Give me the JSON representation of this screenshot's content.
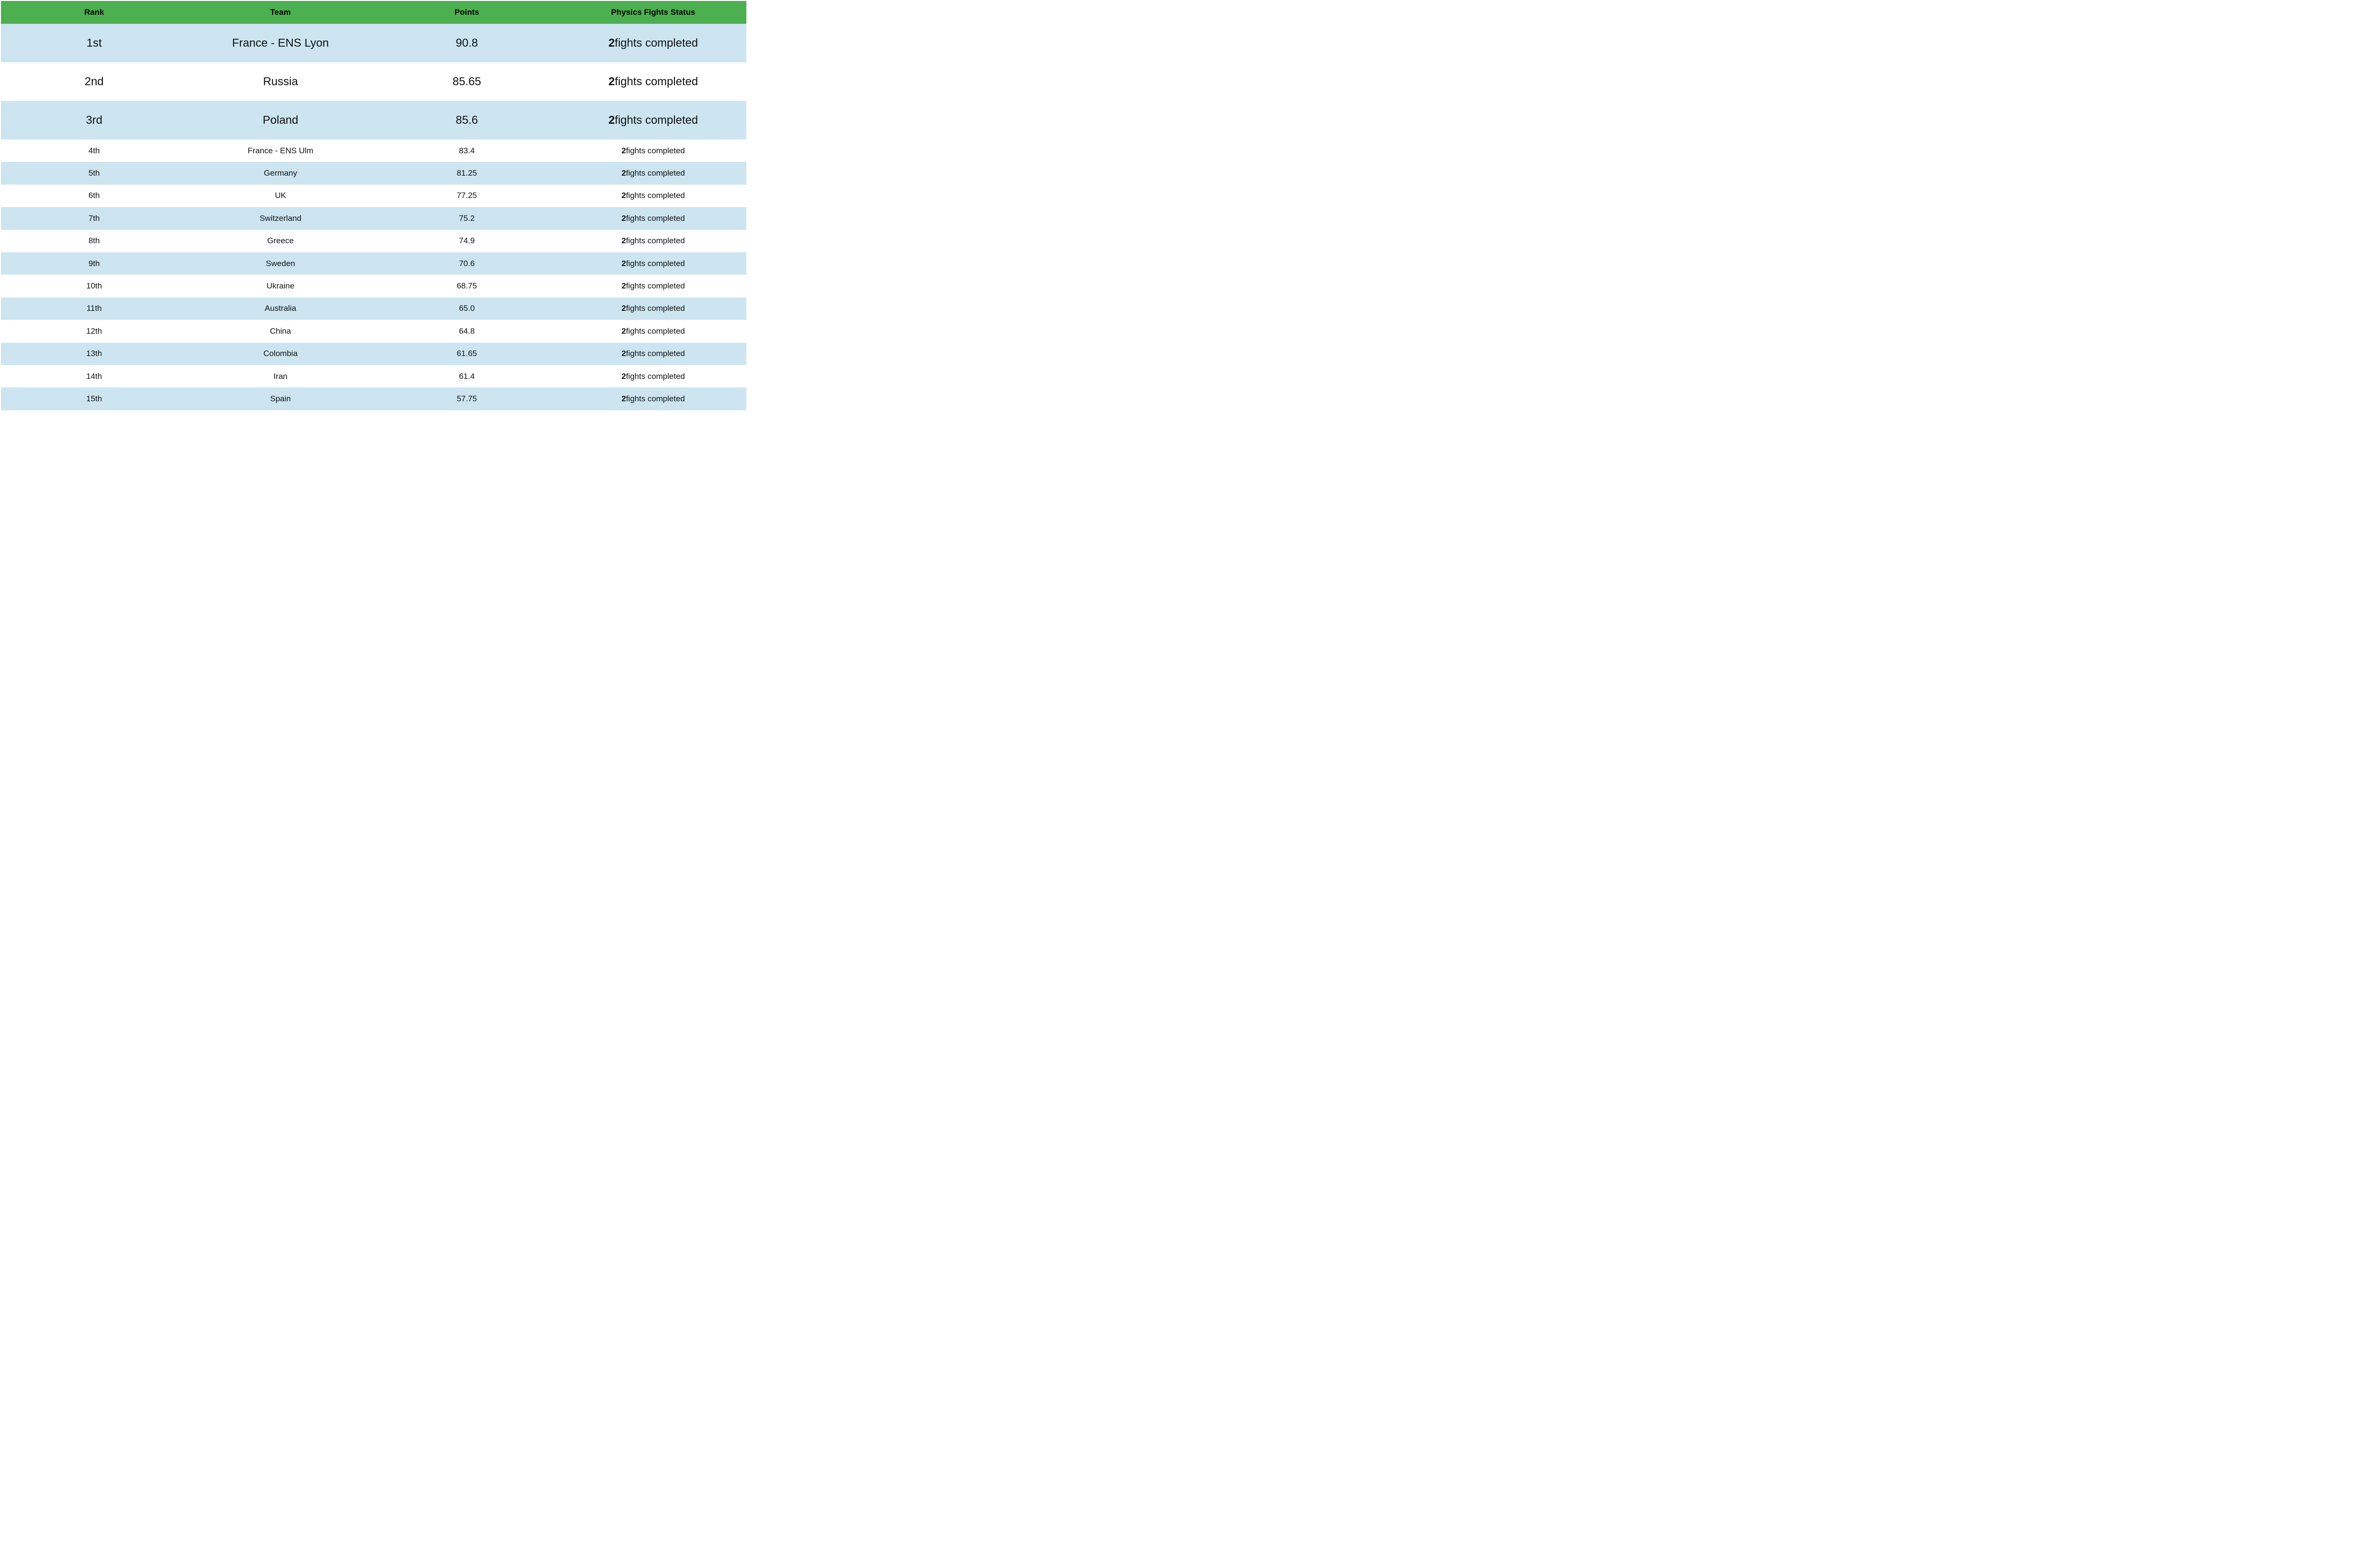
{
  "colors": {
    "header_bg": "#4caf50",
    "header_text": "#000000",
    "row_blue_bg": "#cce5f1",
    "row_white_bg": "#ffffff",
    "body_text": "#111111"
  },
  "table": {
    "columns": [
      {
        "label": "Rank"
      },
      {
        "label": "Team"
      },
      {
        "label": "Points"
      },
      {
        "label": "Physics Fights Status"
      }
    ],
    "status_suffix": " fights completed",
    "rows": [
      {
        "rank": "1st",
        "team": "France - ENS Lyon",
        "points": "90.8",
        "fights_completed": "2",
        "tier": "top"
      },
      {
        "rank": "2nd",
        "team": "Russia",
        "points": "85.65",
        "fights_completed": "2",
        "tier": "top"
      },
      {
        "rank": "3rd",
        "team": "Poland",
        "points": "85.6",
        "fights_completed": "2",
        "tier": "top"
      },
      {
        "rank": "4th",
        "team": "France - ENS Ulm",
        "points": "83.4",
        "fights_completed": "2",
        "tier": "normal"
      },
      {
        "rank": "5th",
        "team": "Germany",
        "points": "81.25",
        "fights_completed": "2",
        "tier": "normal"
      },
      {
        "rank": "6th",
        "team": "UK",
        "points": "77.25",
        "fights_completed": "2",
        "tier": "normal"
      },
      {
        "rank": "7th",
        "team": "Switzerland",
        "points": "75.2",
        "fights_completed": "2",
        "tier": "normal"
      },
      {
        "rank": "8th",
        "team": "Greece",
        "points": "74.9",
        "fights_completed": "2",
        "tier": "normal"
      },
      {
        "rank": "9th",
        "team": "Sweden",
        "points": "70.6",
        "fights_completed": "2",
        "tier": "normal"
      },
      {
        "rank": "10th",
        "team": "Ukraine",
        "points": "68.75",
        "fights_completed": "2",
        "tier": "normal"
      },
      {
        "rank": "11th",
        "team": "Australia",
        "points": "65.0",
        "fights_completed": "2",
        "tier": "normal"
      },
      {
        "rank": "12th",
        "team": "China",
        "points": "64.8",
        "fights_completed": "2",
        "tier": "normal"
      },
      {
        "rank": "13th",
        "team": "Colombia",
        "points": "61.65",
        "fights_completed": "2",
        "tier": "normal"
      },
      {
        "rank": "14th",
        "team": "Iran",
        "points": "61.4",
        "fights_completed": "2",
        "tier": "normal"
      },
      {
        "rank": "15th",
        "team": "Spain",
        "points": "57.75",
        "fights_completed": "2",
        "tier": "normal"
      }
    ]
  }
}
